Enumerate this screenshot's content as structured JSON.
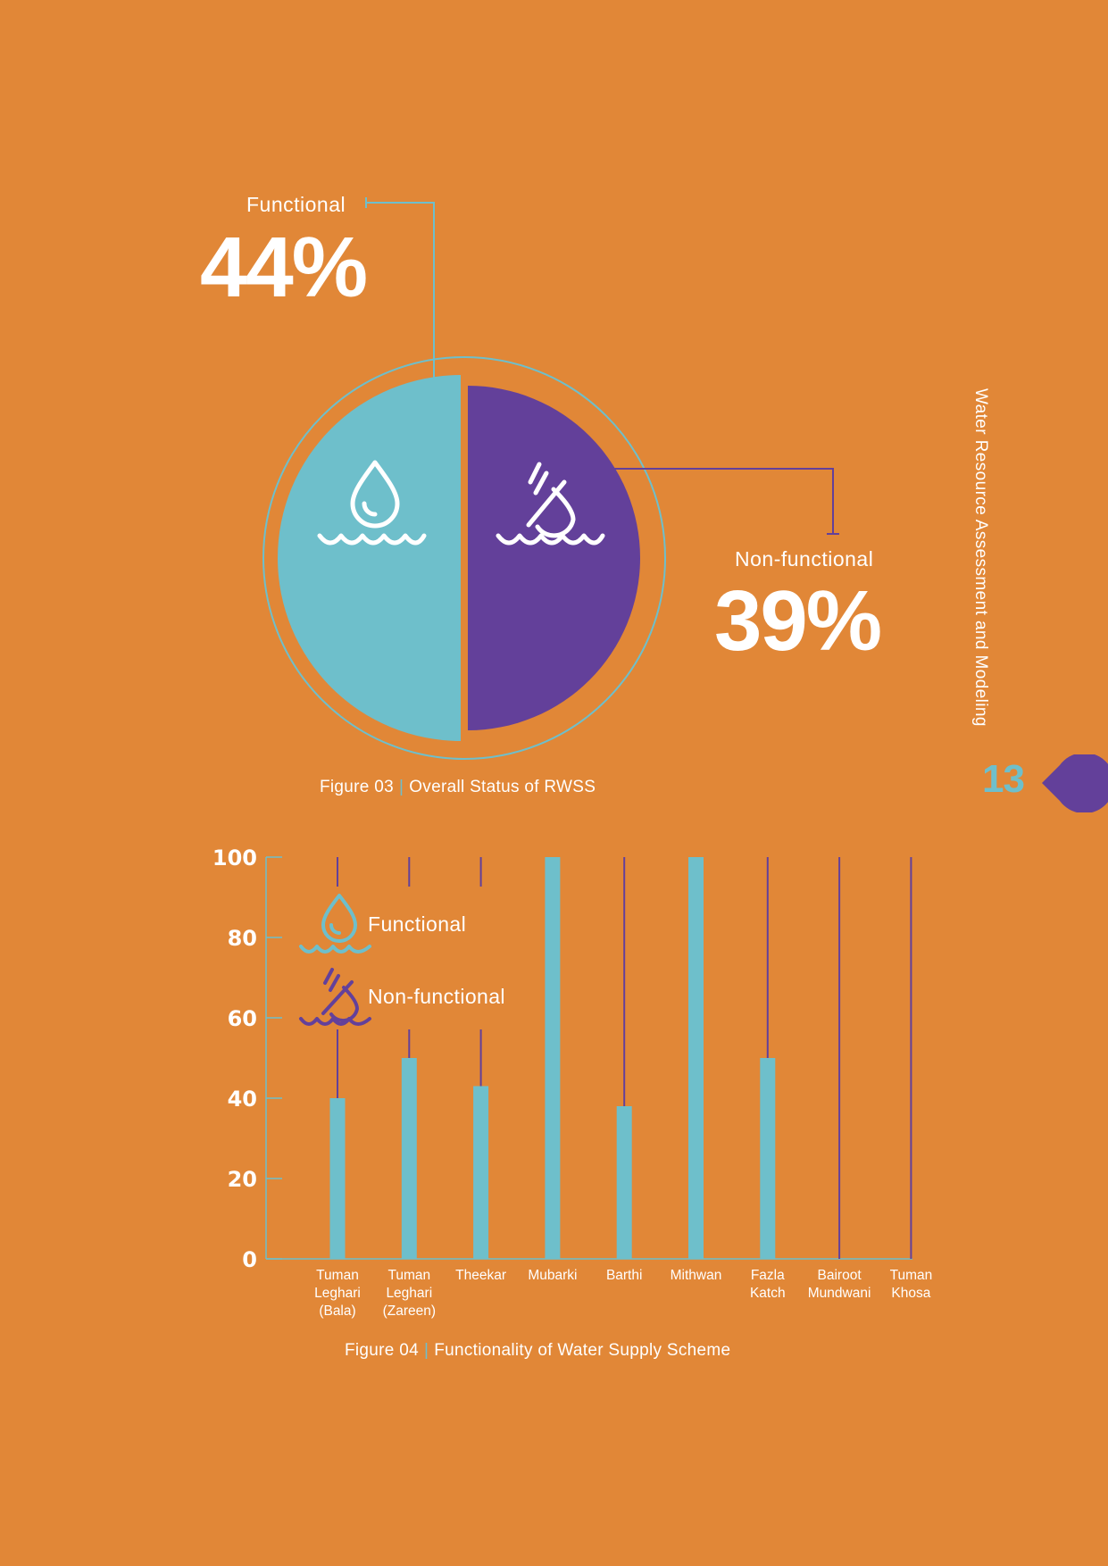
{
  "side_title": "Water Resource Assessment and Modeling",
  "page_number": "13",
  "colors": {
    "background": "#E18737",
    "functional": "#6EBFCB",
    "non_functional": "#63409A",
    "text": "#FFFFFF"
  },
  "figure03": {
    "caption_number": "Figure 03",
    "caption_separator": "|",
    "caption_text": "Overall Status of RWSS",
    "functional_label": "Functional",
    "functional_value": "44%",
    "non_functional_label": "Non-functional",
    "non_functional_value": "39%",
    "icons": [
      "water-drop-icon",
      "broken-water-drop-icon"
    ]
  },
  "figure04": {
    "caption_number": "Figure 04",
    "caption_separator": "|",
    "caption_text": "Functionality of Water Supply Scheme"
  },
  "chart_data": [
    {
      "type": "pie",
      "categories": [
        "Functional",
        "Non-functional"
      ],
      "values": [
        44,
        39
      ],
      "units": "%"
    },
    {
      "type": "bar",
      "categories": [
        [
          "Tuman",
          "Leghari",
          "(Bala)"
        ],
        [
          "Tuman",
          "Leghari",
          "(Zareen)"
        ],
        [
          "Theekar"
        ],
        [
          "Mubarki"
        ],
        [
          "Barthi"
        ],
        [
          "Mithwan"
        ],
        [
          "Fazla",
          "Katch"
        ],
        [
          "Bairoot",
          "Mundwani"
        ],
        [
          "Tuman",
          "Khosa"
        ]
      ],
      "series": [
        {
          "name": "Functional",
          "values": [
            40,
            50,
            43,
            100,
            38,
            100,
            50,
            0,
            0
          ]
        },
        {
          "name": "Non-functional",
          "values": [
            60,
            50,
            57,
            0,
            62,
            0,
            50,
            100,
            100
          ]
        }
      ],
      "stacked": true,
      "ylim": [
        0,
        100
      ],
      "yticks": [
        "0",
        "20",
        "40",
        "60",
        "80",
        "100"
      ],
      "legend_placement": "top-left",
      "grid": false
    }
  ]
}
